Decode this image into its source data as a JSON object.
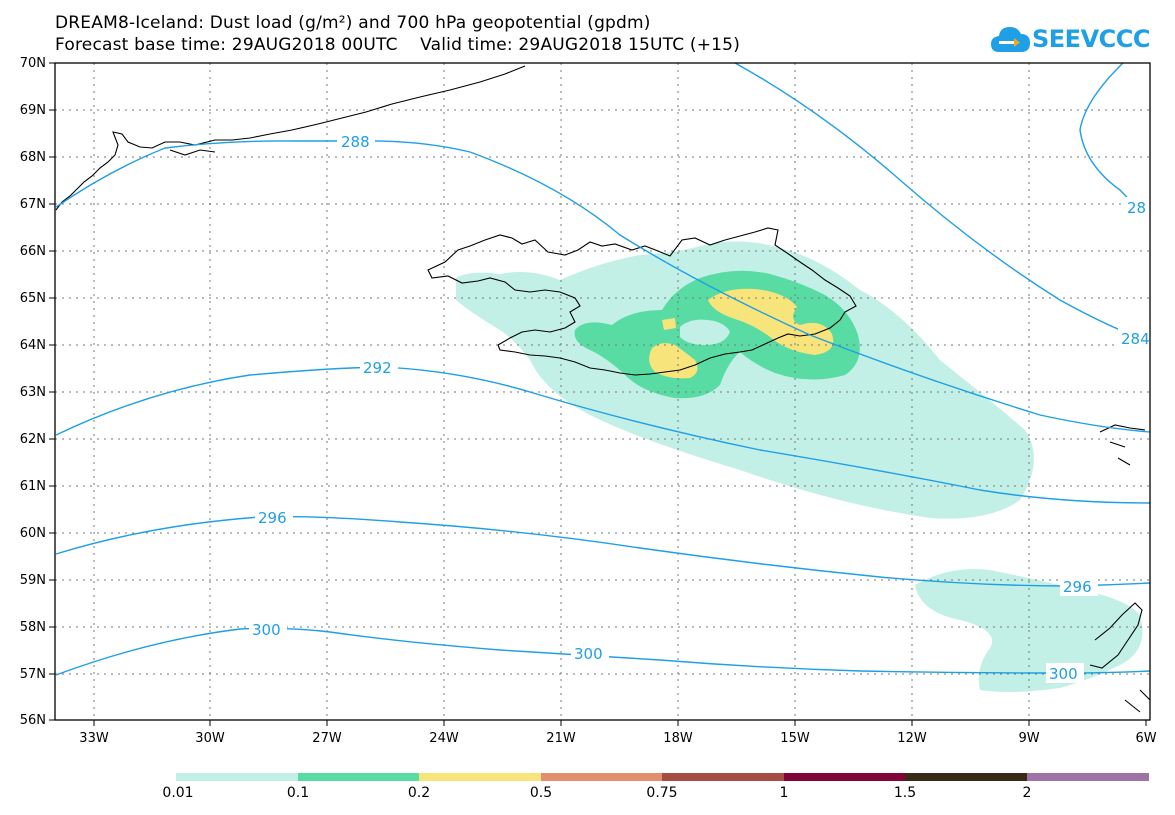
{
  "title": {
    "line1": "DREAM8-Iceland: Dust load (g/m²) and 700 hPa geopotential (gpdm)",
    "line2": "Forecast base time: 29AUG2018 00UTC    Valid time: 29AUG2018 15UTC (+15)"
  },
  "logo": {
    "text": "SEEVCCC"
  },
  "map": {
    "lon_range": [
      -34.2,
      -6.0
    ],
    "lat_range": [
      56,
      70
    ],
    "lon_ticks": [
      "33W",
      "30W",
      "27W",
      "24W",
      "21W",
      "18W",
      "15W",
      "12W",
      "9W",
      "6W"
    ],
    "lat_ticks": [
      "56N",
      "57N",
      "58N",
      "59N",
      "60N",
      "61N",
      "62N",
      "63N",
      "64N",
      "65N",
      "66N",
      "67N",
      "68N",
      "69N",
      "70N"
    ],
    "contours": [
      {
        "label": "288",
        "color": "#1e9fe6"
      },
      {
        "label": "292",
        "color": "#1e9fe6"
      },
      {
        "label": "296",
        "color": "#1e9fe6"
      },
      {
        "label": "300",
        "color": "#1e9fe6"
      },
      {
        "label": "28",
        "color": "#1e9fe6"
      },
      {
        "label": "284",
        "color": "#1e9fe6"
      }
    ],
    "contour_labels": [
      "288",
      "292",
      "296",
      "296",
      "300",
      "300",
      "300",
      "28",
      "284"
    ]
  },
  "colorbar": {
    "levels": [
      "0.01",
      "0.1",
      "0.2",
      "0.5",
      "0.75",
      "1",
      "1.5",
      "2"
    ],
    "colors": [
      "#c3f0e6",
      "#58dca3",
      "#f7e47b",
      "#e38e6c",
      "#a54c43",
      "#82053a",
      "#3a2b17",
      "#9e74a7"
    ]
  }
}
